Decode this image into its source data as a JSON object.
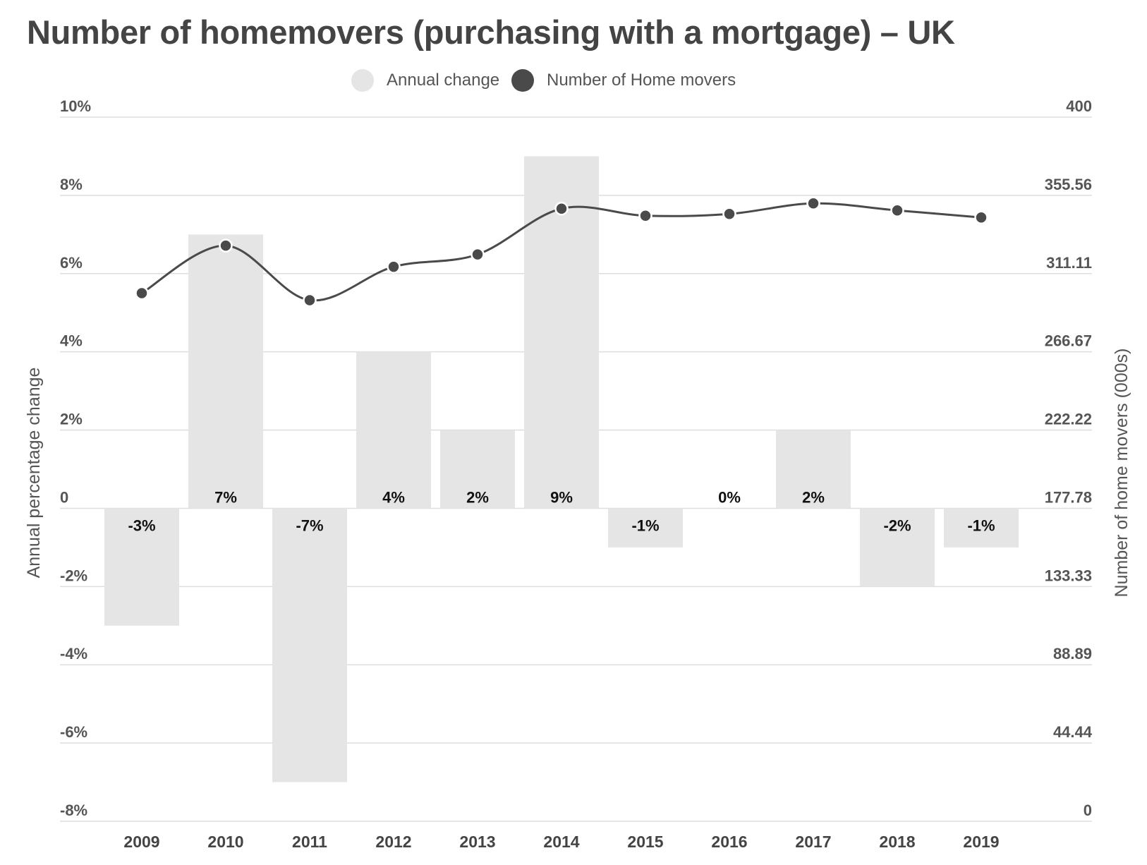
{
  "chart_data": {
    "type": "bar+line",
    "title": "Number of homemovers (purchasing with a mortgage) – UK",
    "categories": [
      "2009",
      "2010",
      "2011",
      "2012",
      "2013",
      "2014",
      "2015",
      "2016",
      "2017",
      "2018",
      "2019"
    ],
    "series": [
      {
        "name": "Annual change",
        "type": "bar",
        "axis": "left",
        "color": "#e5e5e5",
        "values": [
          -3,
          7,
          -7,
          4,
          2,
          9,
          -1,
          0,
          2,
          -2,
          -1
        ],
        "data_labels": [
          "-3%",
          "7%",
          "-7%",
          "4%",
          "2%",
          "9%",
          "-1%",
          "0%",
          "2%",
          "-2%",
          "-1%"
        ]
      },
      {
        "name": "Number of Home movers",
        "type": "line",
        "axis": "right",
        "color": "#4a4a4a",
        "values": [
          300,
          327,
          296,
          315,
          322,
          348,
          344,
          345,
          351,
          347,
          343
        ]
      }
    ],
    "y_left": {
      "label": "Annual percentage change",
      "ylim": [
        -8,
        10
      ],
      "ticks": [
        10,
        8,
        6,
        4,
        2,
        0,
        -2,
        -4,
        -6,
        -8
      ],
      "tick_labels": [
        "10%",
        "8%",
        "6%",
        "4%",
        "2%",
        "0",
        "-2%",
        "-4%",
        "-6%",
        "-8%"
      ]
    },
    "y_right": {
      "label": "Number of home movers (000s)",
      "ylim": [
        0,
        400
      ],
      "tick_labels": [
        "400",
        "355.56",
        "311.11",
        "266.67",
        "222.22",
        "177.78",
        "133.33",
        "88.89",
        "44.44",
        "0"
      ]
    },
    "grid": true,
    "legend_position": "top-center"
  }
}
